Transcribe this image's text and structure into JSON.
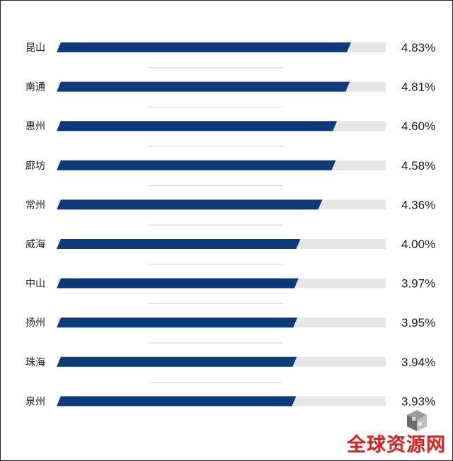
{
  "chart_data": {
    "type": "bar",
    "orientation": "horizontal",
    "categories": [
      "昆山",
      "南通",
      "惠州",
      "廊坊",
      "常州",
      "威海",
      "中山",
      "扬州",
      "珠海",
      "泉州"
    ],
    "values": [
      4.83,
      4.81,
      4.6,
      4.58,
      4.36,
      4.0,
      3.97,
      3.95,
      3.94,
      3.93
    ],
    "value_labels": [
      "4.83%",
      "4.81%",
      "4.60%",
      "4.58%",
      "4.36%",
      "4.00%",
      "3.97%",
      "3.95%",
      "3.94%",
      "3.93%"
    ],
    "title": "",
    "xlabel": "",
    "ylabel": "",
    "xlim": [
      0,
      5.4
    ],
    "grid": false,
    "legend": "none",
    "colors": {
      "bar": "#0d3b7a",
      "track": "#e6e6e6",
      "separator": "#d4d4d4"
    }
  },
  "watermark": {
    "text": "全球资源网",
    "color": "#e01e1e",
    "logo_icon": "cube-logo-icon"
  }
}
